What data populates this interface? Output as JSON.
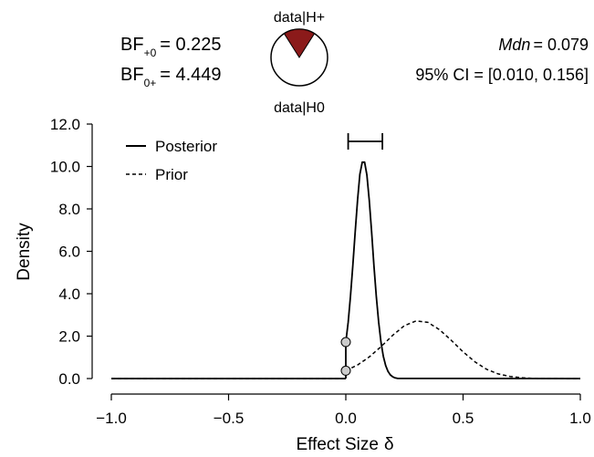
{
  "chart_data": {
    "type": "line",
    "xlabel": "Effect Size",
    "xlabel_symbol": "δ",
    "ylabel": "Density",
    "xlim": [
      -1.0,
      1.0
    ],
    "ylim": [
      0,
      12
    ],
    "x_ticks": [
      "−1.0",
      "−0.5",
      "0.0",
      "0.5",
      "1.0"
    ],
    "y_ticks": [
      "0.0",
      "2.0",
      "4.0",
      "6.0",
      "8.0",
      "10.0",
      "12.0"
    ],
    "series": [
      {
        "name": "Posterior",
        "style": "solid",
        "x": [
          0.0,
          0.01,
          0.02,
          0.03,
          0.04,
          0.05,
          0.06,
          0.07,
          0.08,
          0.09,
          0.1,
          0.11,
          0.12,
          0.13,
          0.14,
          0.15,
          0.16,
          0.17,
          0.18,
          0.19,
          0.2,
          0.21,
          0.22,
          1.0
        ],
        "y": [
          1.72,
          2.66,
          3.88,
          5.34,
          6.93,
          8.43,
          9.63,
          10.2,
          10.2,
          9.6,
          8.4,
          6.9,
          5.33,
          3.88,
          2.66,
          1.73,
          1.05,
          0.61,
          0.33,
          0.17,
          0.08,
          0.03,
          0.01,
          0.0
        ]
      },
      {
        "name": "Prior",
        "style": "dashed",
        "x": [
          0.0,
          0.05,
          0.1,
          0.15,
          0.2,
          0.25,
          0.3,
          0.35,
          0.4,
          0.45,
          0.5,
          0.55,
          0.6,
          0.65,
          0.7,
          0.75,
          0.8,
          1.0
        ],
        "y": [
          0.37,
          0.64,
          1.02,
          1.5,
          2.04,
          2.5,
          2.72,
          2.65,
          2.3,
          1.8,
          1.26,
          0.79,
          0.44,
          0.22,
          0.1,
          0.04,
          0.01,
          0.0
        ]
      }
    ],
    "points": [
      {
        "x": 0.0,
        "y": 1.72
      },
      {
        "x": 0.0,
        "y": 0.37
      }
    ],
    "credible_interval": [
      0.01,
      0.156
    ],
    "legend_position": "top-left",
    "grid": false,
    "colors": {
      "pie_h_plus": "#8b1a1a",
      "point_fill": "#cccccc"
    }
  },
  "bf10": {
    "prefix": "BF",
    "sub": "+0",
    "value": "= 0.225"
  },
  "bf01": {
    "prefix": "BF",
    "sub": "0+",
    "value": "= 4.449"
  },
  "median": {
    "label": "Mdn",
    "value": "= 0.079"
  },
  "ci_text": "95% CI = [0.010, 0.156]",
  "pie": {
    "top_label": "data|H+",
    "bottom_label": "data|H0",
    "h_plus_fraction": 0.18
  }
}
